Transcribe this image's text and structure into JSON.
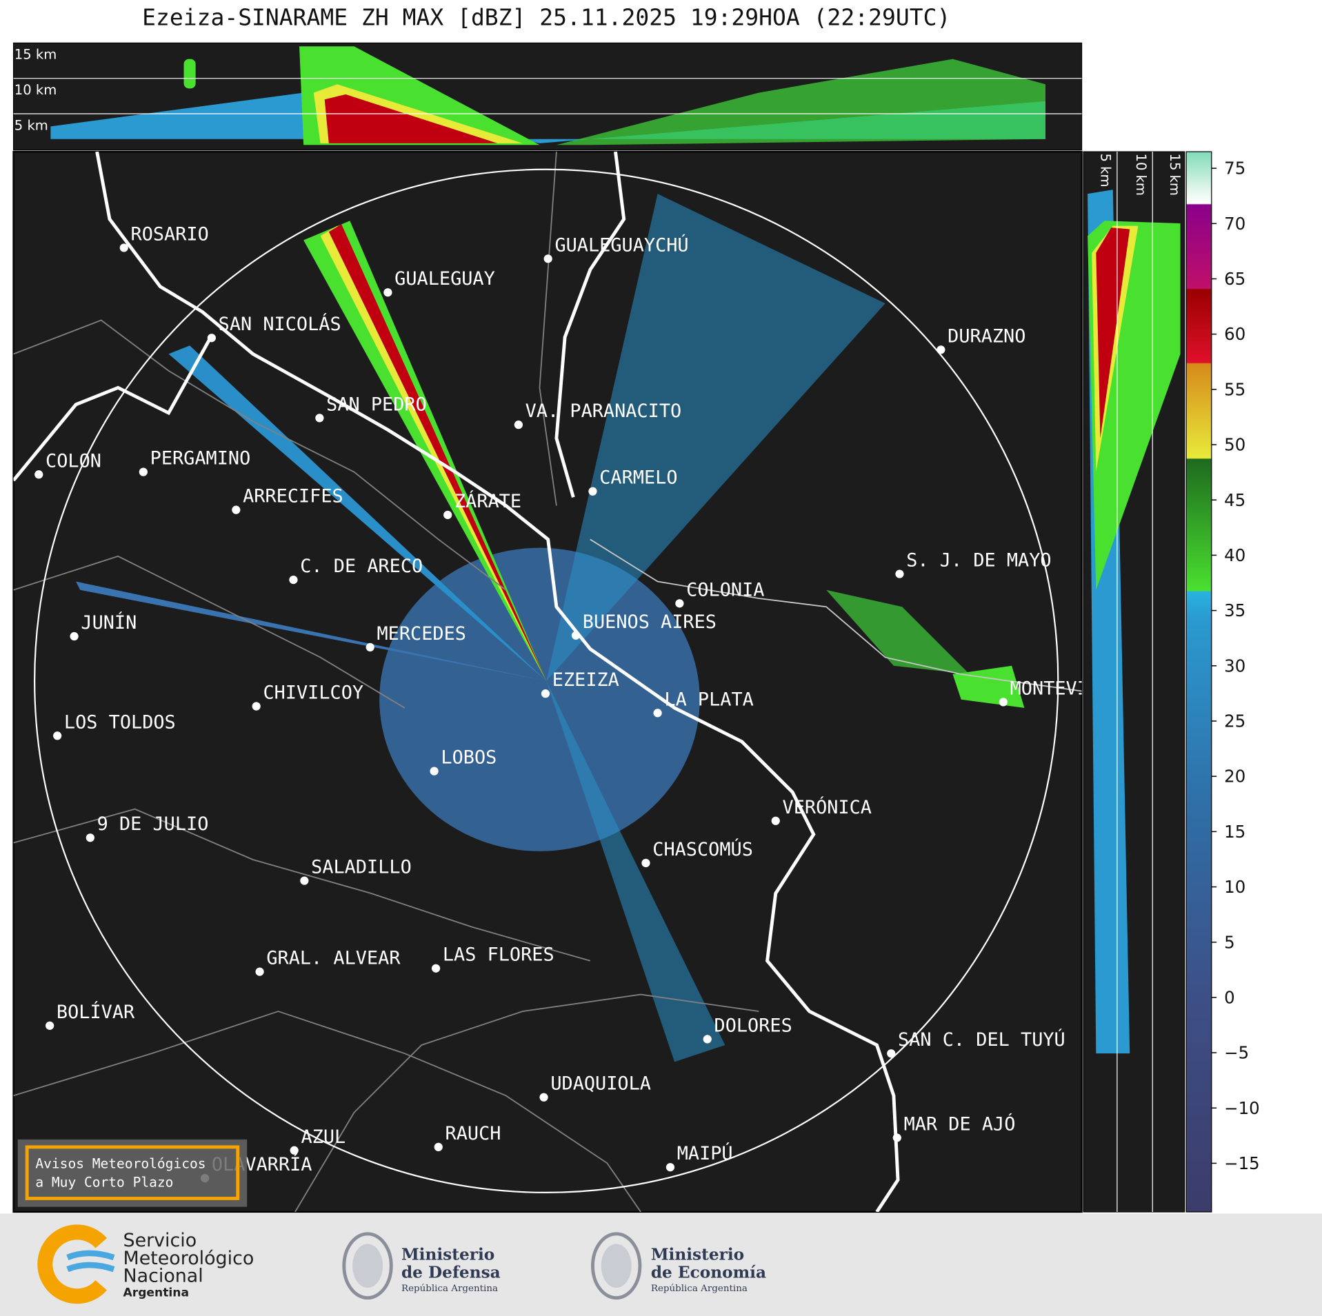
{
  "title": "Ezeiza-SINARAME ZH MAX [dBZ] 25.11.2025 19:29HOA (22:29UTC)",
  "top_panel": {
    "labels": [
      "15 km",
      "10 km",
      "5 km"
    ]
  },
  "side_panel": {
    "labels": [
      "5 km",
      "10 km",
      "15 km"
    ]
  },
  "cities": [
    "ROSARIO",
    "GUALEGUAYCHÚ",
    "GUALEGUAY",
    "SAN NICOLÁS",
    "DURAZNO",
    "SAN PEDRO",
    "VA. PARANACITO",
    "COLON",
    "PERGAMINO",
    "CARMELO",
    "ARRECIFES",
    "ZÁRATE",
    "C. DE ARECO",
    "S. J. DE MAYO",
    "COLONIA",
    "JUNÍN",
    "BUENOS AIRES",
    "MERCEDES",
    "MONTEVIDEO",
    "EZEIZA",
    "CHIVILCOY",
    "LA PLATA",
    "LOS TOLDOS",
    "LOBOS",
    "VERÓNICA",
    "9 DE JULIO",
    "CHASCOMÚS",
    "SALADILLO",
    "GRAL. ALVEAR",
    "LAS FLORES",
    "BOLÍVAR",
    "DOLORES",
    "SAN C. DEL TUYÚ",
    "UDAQUIOLA",
    "MAR DE AJÓ",
    "AZUL",
    "RAUCH",
    "OLAVARRÍA",
    "MAIPÚ"
  ],
  "colorbar": {
    "lim": [
      -19.4,
      76.5
    ],
    "ticks": [
      {
        "value": -15,
        "label": "−15"
      },
      {
        "value": -10,
        "label": "−10"
      },
      {
        "value": -5,
        "label": "−5"
      },
      0,
      5,
      10,
      15,
      20,
      25,
      30,
      35,
      40,
      45,
      50,
      55,
      60,
      65,
      70,
      75
    ]
  },
  "warning_box": {
    "lines": [
      "Avisos Meteorológicos",
      "a Muy Corto Plazo"
    ]
  },
  "footer": {
    "smn": [
      "Servicio",
      "Meteorológico",
      "Nacional",
      "Argentina"
    ],
    "defensa": [
      "Ministerio",
      "de Defensa",
      "República Argentina"
    ],
    "economia": [
      "Ministerio",
      "de Economía",
      "República Argentina"
    ]
  }
}
